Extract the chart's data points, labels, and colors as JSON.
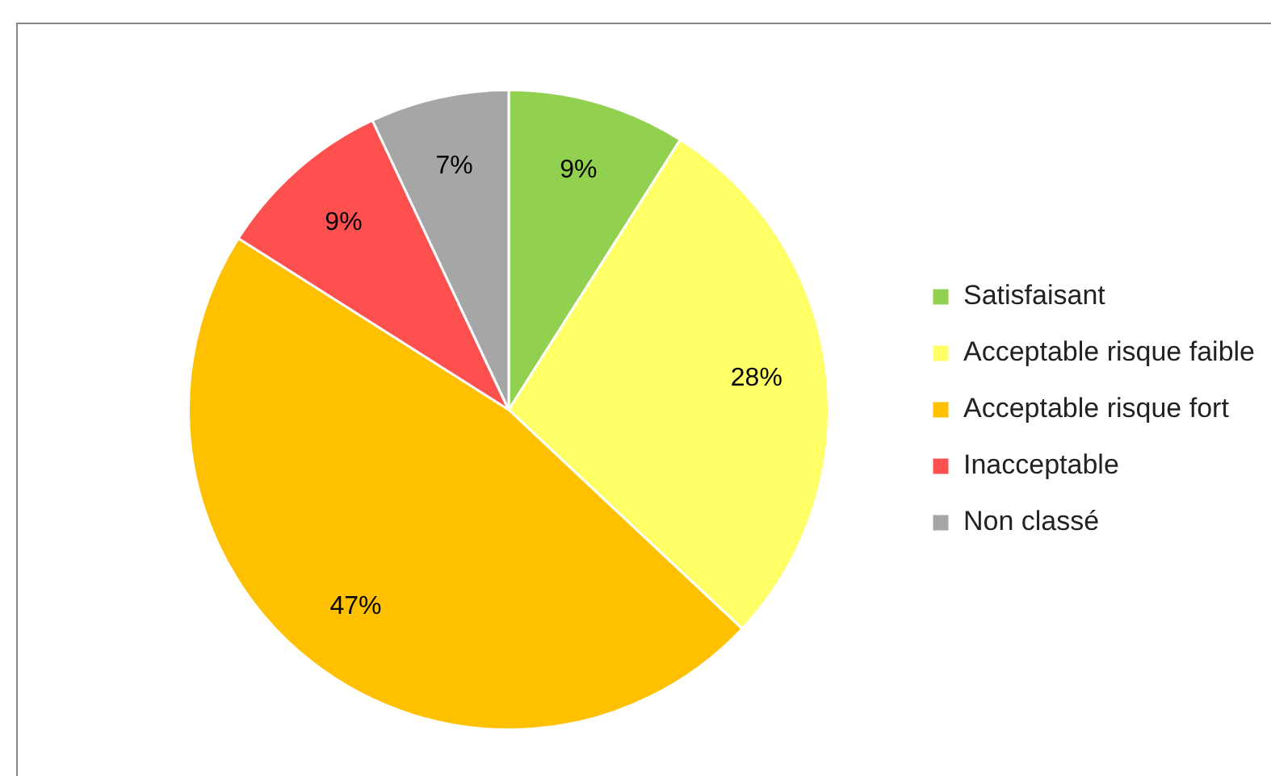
{
  "chart_data": {
    "type": "pie",
    "categories": [
      "Satisfaisant",
      "Acceptable risque faible",
      "Acceptable risque fort",
      "Inacceptable",
      "Non classé"
    ],
    "values": [
      9,
      28,
      47,
      9,
      7
    ],
    "colors": [
      "#92d050",
      "#ffff66",
      "#ffc000",
      "#ff5050",
      "#a6a6a6"
    ],
    "value_labels": [
      "9%",
      "28%",
      "47%",
      "9%",
      "7%"
    ],
    "legend": "right"
  }
}
